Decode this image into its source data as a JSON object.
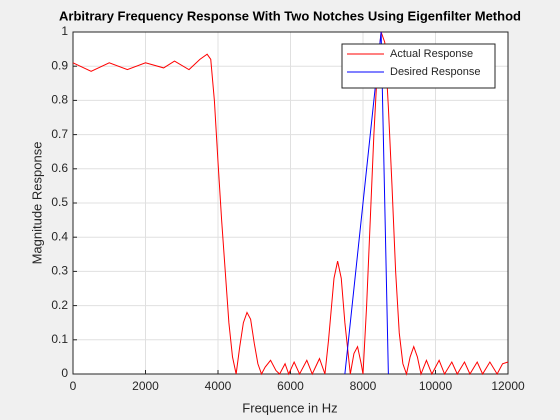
{
  "chart_data": {
    "type": "line",
    "title": "Arbitrary Frequency Response With Two Notches Using Eigenfilter Method",
    "xlabel": "Frequence in Hz",
    "ylabel": "Magnitude Response",
    "xlim": [
      0,
      12000
    ],
    "ylim": [
      0,
      1
    ],
    "xticks": [
      0,
      2000,
      4000,
      6000,
      8000,
      10000,
      12000
    ],
    "yticks": [
      0,
      0.1,
      0.2,
      0.3,
      0.4,
      0.5,
      0.6,
      0.7,
      0.8,
      0.9,
      1
    ],
    "grid": true,
    "legend": "northeast",
    "series": [
      {
        "name": "Actual Response",
        "color": "#ff0000",
        "x": [
          0,
          500,
          1000,
          1500,
          2000,
          2500,
          2800,
          3200,
          3500,
          3700,
          3800,
          3900,
          4000,
          4100,
          4200,
          4300,
          4400,
          4500,
          4600,
          4700,
          4800,
          4900,
          5000,
          5100,
          5200,
          5300,
          5450,
          5600,
          5700,
          5850,
          5950,
          6100,
          6250,
          6450,
          6600,
          6800,
          6950,
          7050,
          7200,
          7300,
          7400,
          7500,
          7650,
          7750,
          7850,
          7950,
          8000,
          8100,
          8200,
          8300,
          8400,
          8500,
          8600,
          8700,
          8800,
          8900,
          9000,
          9100,
          9200,
          9300,
          9400,
          9500,
          9600,
          9750,
          9900,
          10100,
          10250,
          10450,
          10600,
          10800,
          10950,
          11150,
          11300,
          11500,
          11700,
          11850,
          12000
        ],
        "values": [
          0.91,
          0.885,
          0.91,
          0.89,
          0.91,
          0.895,
          0.915,
          0.89,
          0.92,
          0.935,
          0.92,
          0.8,
          0.62,
          0.45,
          0.3,
          0.15,
          0.05,
          0,
          0.08,
          0.15,
          0.18,
          0.16,
          0.09,
          0.03,
          0,
          0.02,
          0.04,
          0.01,
          0,
          0.03,
          0,
          0.035,
          0,
          0.04,
          0,
          0.045,
          0,
          0.1,
          0.28,
          0.33,
          0.28,
          0.15,
          0,
          0.06,
          0.08,
          0.03,
          0,
          0.2,
          0.45,
          0.7,
          0.9,
          1.0,
          0.97,
          0.78,
          0.55,
          0.3,
          0.12,
          0.03,
          0,
          0.05,
          0.08,
          0.05,
          0,
          0.04,
          0,
          0.04,
          0,
          0.035,
          0,
          0.035,
          0,
          0.035,
          0,
          0.035,
          0,
          0.03,
          0.035
        ]
      },
      {
        "name": "Desired Response",
        "color": "#0000ff",
        "x": [
          7500,
          8500,
          8700
        ],
        "values": [
          0,
          1,
          0
        ]
      }
    ]
  }
}
